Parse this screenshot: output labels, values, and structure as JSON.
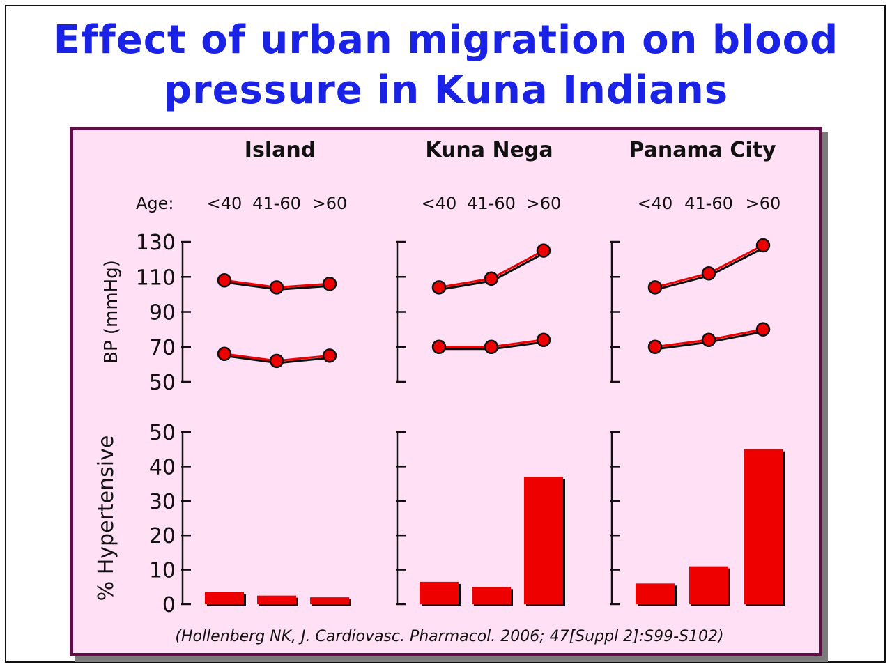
{
  "title": {
    "line1": "Effect of urban migration on blood",
    "line2": "pressure in Kuna Indians"
  },
  "colors": {
    "title": "#1a22e6",
    "panel_background": "#ffe0f5",
    "panel_border": "#5e0f46",
    "series": "#ee0000"
  },
  "age_label": "Age:",
  "citation": "(Hollenberg NK, J. Cardiovasc. Pharmacol. 2006; 47[Suppl 2]:S99-S102)",
  "chart_data": [
    {
      "type": "line",
      "ylabel": "BP (mmHg)",
      "ylim": [
        50,
        130
      ],
      "yticks": [
        "50",
        "70",
        "90",
        "110",
        "130"
      ],
      "groups": [
        {
          "name": "Island",
          "categories": [
            "<40",
            "41-60",
            ">60"
          ],
          "series": [
            {
              "values": [
                108,
                104,
                106
              ]
            },
            {
              "values": [
                66,
                62,
                65
              ]
            }
          ]
        },
        {
          "name": "Kuna Nega",
          "categories": [
            "<40",
            "41-60",
            ">60"
          ],
          "series": [
            {
              "values": [
                104,
                109,
                125
              ]
            },
            {
              "values": [
                70,
                70,
                74
              ]
            }
          ]
        },
        {
          "name": "Panama City",
          "categories": [
            "<40",
            "41-60",
            ">60"
          ],
          "series": [
            {
              "values": [
                104,
                112,
                128
              ]
            },
            {
              "values": [
                70,
                74,
                80
              ]
            }
          ]
        }
      ]
    },
    {
      "type": "bar",
      "ylabel": "% Hypertensive",
      "ylim": [
        0,
        50
      ],
      "yticks": [
        "0",
        "10",
        "20",
        "30",
        "40",
        "50"
      ],
      "groups": [
        {
          "name": "Island",
          "categories": [
            "<40",
            "41-60",
            ">60"
          ],
          "values": [
            3.5,
            2.5,
            2
          ]
        },
        {
          "name": "Kuna Nega",
          "categories": [
            "<40",
            "41-60",
            ">60"
          ],
          "values": [
            6.5,
            5,
            37
          ]
        },
        {
          "name": "Panama City",
          "categories": [
            "<40",
            "41-60",
            ">60"
          ],
          "values": [
            6,
            11,
            45
          ]
        }
      ]
    }
  ]
}
